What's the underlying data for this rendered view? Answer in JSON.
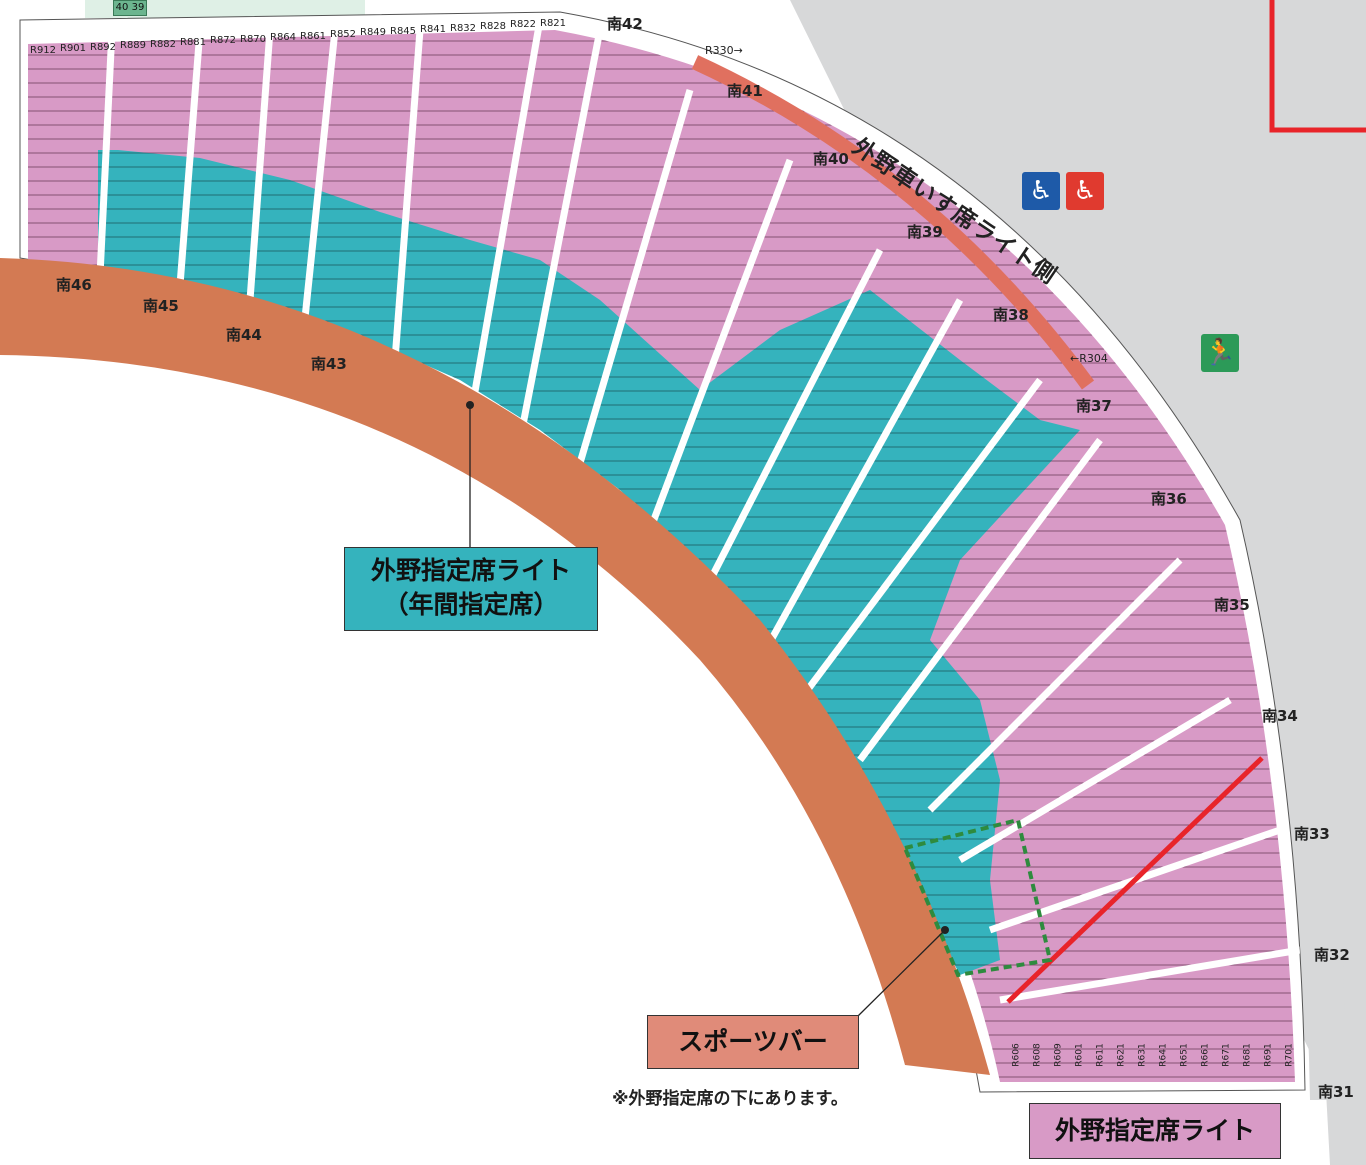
{
  "gate": {
    "label": "40 39"
  },
  "colors": {
    "concourse": "#d7d8d9",
    "field_band": "#d37a53",
    "pink_seat": "#d89ac6",
    "teal_seat": "#35b3bd",
    "wheelchair_bar": "#e0705f",
    "red_line": "#e8242a",
    "sportsbar_outline": "#2e8b3e"
  },
  "icons": [
    "restroom-male-wheelchair-icon",
    "restroom-female-wheelchair-icon",
    "emergency-exit-icon"
  ],
  "zones": {
    "nan46": "南46",
    "nan45": "南45",
    "nan44": "南44",
    "nan43": "南43",
    "nan42": "南42",
    "nan41": "南41",
    "nan40": "南40",
    "nan39": "南39",
    "nan38": "南38",
    "nan37": "南37",
    "nan36": "南36",
    "nan35": "南35",
    "nan34": "南34",
    "nan33": "南33",
    "nan32": "南32",
    "nan31": "南31"
  },
  "wheelchair": {
    "title": "外野車いす席ライト側",
    "start_tag": "R330→",
    "end_tag": "←R304"
  },
  "legend": {
    "annual_line1": "外野指定席ライト",
    "annual_line2": "（年間指定席）",
    "sports_bar": "スポーツバー",
    "note": "※外野指定席の下にあります。",
    "outfield_right": "外野指定席ライト"
  },
  "sample_rows": {
    "top_left": [
      "R912",
      "R901",
      "R892",
      "R889",
      "R882",
      "R881",
      "R872",
      "R870",
      "R864",
      "R861",
      "R852",
      "R849",
      "R845",
      "R841",
      "R832",
      "R828",
      "R822",
      "R821"
    ],
    "bottom_right": [
      "R606",
      "R608",
      "R609",
      "R601",
      "R611",
      "R621",
      "R631",
      "R641",
      "R651",
      "R661",
      "R671",
      "R681",
      "R691",
      "R701"
    ]
  }
}
